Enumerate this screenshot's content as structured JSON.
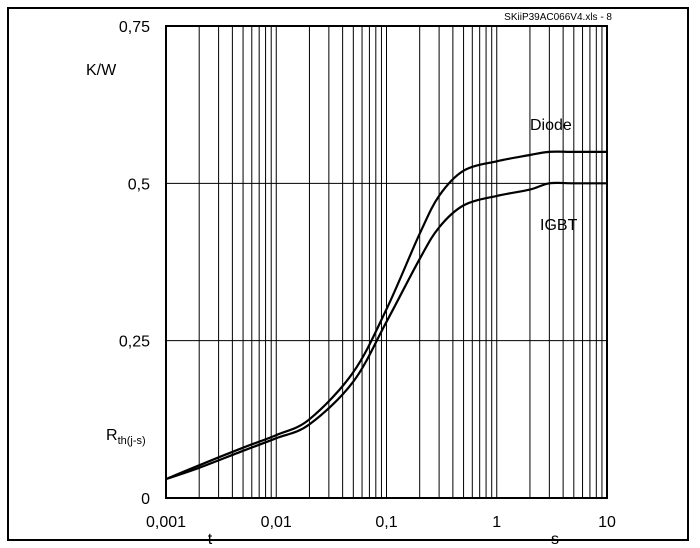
{
  "chart_data": {
    "type": "line",
    "file_label": "SKiiP39AC066V4.xls - 8",
    "x_scale": "log",
    "xlim": [
      0.001,
      10
    ],
    "ylim": [
      0,
      0.75
    ],
    "grid": true,
    "x_ticks": [
      "0,001",
      "0,01",
      "0,1",
      "1",
      "10"
    ],
    "y_ticks": [
      "0",
      "0,25",
      "0,5",
      "0,75"
    ],
    "x_tick_values": [
      0.001,
      0.01,
      0.1,
      1,
      10
    ],
    "y_tick_values": [
      0,
      0.25,
      0.5,
      0.75
    ],
    "xlabel_left": "t",
    "xlabel_unit": "s",
    "ylabel_unit": "K/W",
    "ylabel_main": "R",
    "ylabel_sub": "th(j-s)",
    "series": [
      {
        "name": "Diode",
        "x": [
          0.001,
          0.002,
          0.005,
          0.01,
          0.02,
          0.05,
          0.1,
          0.2,
          0.3,
          0.5,
          1,
          2,
          3,
          5,
          10
        ],
        "y": [
          0.03,
          0.052,
          0.08,
          0.1,
          0.125,
          0.2,
          0.3,
          0.42,
          0.48,
          0.52,
          0.535,
          0.545,
          0.55,
          0.55,
          0.55
        ]
      },
      {
        "name": "IGBT",
        "x": [
          0.001,
          0.002,
          0.005,
          0.01,
          0.02,
          0.05,
          0.1,
          0.2,
          0.3,
          0.5,
          1,
          2,
          3,
          5,
          10
        ],
        "y": [
          0.03,
          0.048,
          0.075,
          0.095,
          0.117,
          0.185,
          0.28,
          0.38,
          0.43,
          0.465,
          0.48,
          0.49,
          0.5,
          0.5,
          0.5
        ]
      }
    ]
  }
}
